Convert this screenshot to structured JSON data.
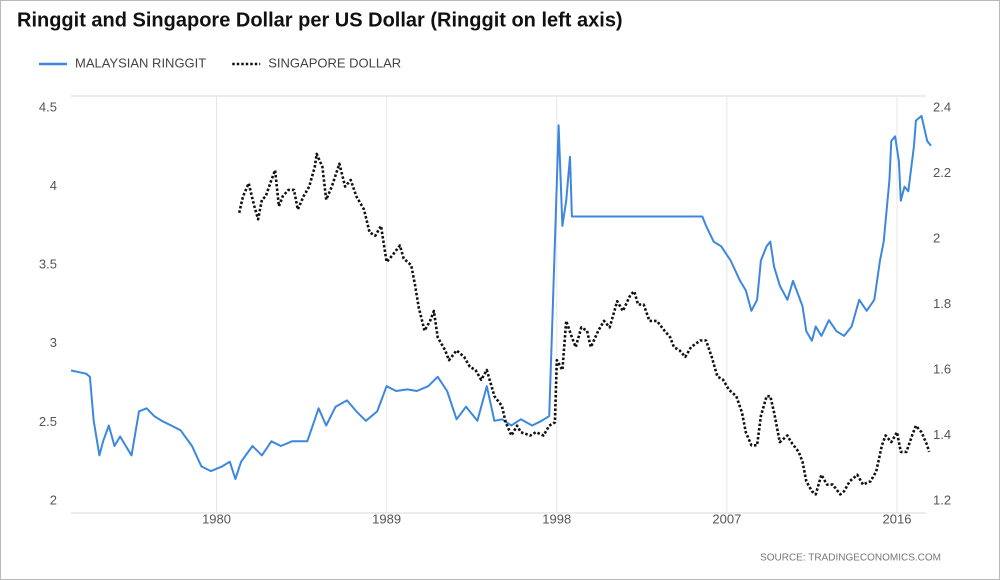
{
  "chart_data": {
    "type": "line",
    "title": "Ringgit and Singapore Dollar per US Dollar (Ringgit on left axis)",
    "source": "SOURCE: TRADINGECONOMICS.COM",
    "xlim": [
      1972.3,
      2017.8
    ],
    "xticks": [
      1980,
      1989,
      1998,
      2007,
      2016
    ],
    "ylim": [
      2,
      4.5
    ],
    "yticks": [
      2,
      2.5,
      3,
      3.5,
      4,
      4.5
    ],
    "y2lim": [
      1.2,
      2.4
    ],
    "y2ticks": [
      1.2,
      1.4,
      1.6,
      1.8,
      2,
      2.2,
      2.4
    ],
    "grid": true,
    "legend": "top",
    "series": [
      {
        "name": "MALAYSIAN RINGGIT",
        "color": "#3d88dc",
        "style": "solid",
        "x": [
          1972.3,
          1973.1,
          1973.3,
          1973.5,
          1973.8,
          1974.0,
          1974.3,
          1974.6,
          1974.9,
          1975.2,
          1975.5,
          1975.9,
          1976.3,
          1976.7,
          1977.1,
          1977.6,
          1978.1,
          1978.7,
          1979.2,
          1979.7,
          1980.3,
          1980.7,
          1981.0,
          1981.3,
          1981.9,
          1982.4,
          1982.9,
          1983.4,
          1984.0,
          1984.8,
          1985.4,
          1985.8,
          1986.3,
          1986.9,
          1987.4,
          1987.9,
          1988.5,
          1989.0,
          1989.5,
          1990.1,
          1990.6,
          1991.2,
          1991.7,
          1992.2,
          1992.7,
          1993.2,
          1993.8,
          1994.3,
          1994.7,
          1995.1,
          1995.6,
          1996.1,
          1996.7,
          1997.2,
          1997.6,
          1997.8,
          1998.0,
          1998.1,
          1998.3,
          1998.5,
          1998.7,
          1998.8,
          1999.3,
          2000.4,
          2003.0,
          2005.7,
          2005.9,
          2006.3,
          2006.7,
          2007.2,
          2007.7,
          2008.0,
          2008.3,
          2008.6,
          2008.8,
          2009.1,
          2009.3,
          2009.5,
          2009.8,
          2010.2,
          2010.5,
          2011.0,
          2011.2,
          2011.5,
          2011.7,
          2012.0,
          2012.4,
          2012.8,
          2013.2,
          2013.6,
          2014.0,
          2014.4,
          2014.8,
          2015.1,
          2015.3,
          2015.6,
          2015.7,
          2015.9,
          2016.1,
          2016.2,
          2016.4,
          2016.6,
          2016.9,
          2017.0,
          2017.3,
          2017.6,
          2017.8
        ],
        "values": [
          2.83,
          2.81,
          2.79,
          2.51,
          2.29,
          2.38,
          2.48,
          2.35,
          2.41,
          2.35,
          2.29,
          2.57,
          2.59,
          2.54,
          2.51,
          2.48,
          2.45,
          2.35,
          2.22,
          2.19,
          2.22,
          2.25,
          2.14,
          2.25,
          2.35,
          2.29,
          2.38,
          2.35,
          2.38,
          2.38,
          2.59,
          2.48,
          2.6,
          2.64,
          2.57,
          2.51,
          2.57,
          2.73,
          2.7,
          2.71,
          2.7,
          2.73,
          2.79,
          2.7,
          2.52,
          2.6,
          2.51,
          2.73,
          2.51,
          2.52,
          2.48,
          2.52,
          2.48,
          2.51,
          2.54,
          3.27,
          4.02,
          4.39,
          3.75,
          3.91,
          4.19,
          3.81,
          3.81,
          3.81,
          3.81,
          3.81,
          3.75,
          3.65,
          3.62,
          3.53,
          3.4,
          3.34,
          3.21,
          3.28,
          3.53,
          3.62,
          3.65,
          3.49,
          3.37,
          3.28,
          3.4,
          3.24,
          3.08,
          3.02,
          3.11,
          3.05,
          3.15,
          3.08,
          3.05,
          3.11,
          3.28,
          3.21,
          3.28,
          3.53,
          3.65,
          4.04,
          4.29,
          4.32,
          4.16,
          3.91,
          4.0,
          3.97,
          4.26,
          4.42,
          4.45,
          4.29,
          4.26
        ]
      },
      {
        "name": "SINGAPORE DOLLAR",
        "color": "#111111",
        "style": "dotted",
        "axis": "y2",
        "x": [
          1981.2,
          1981.4,
          1981.7,
          1982.0,
          1982.2,
          1982.4,
          1982.6,
          1982.9,
          1983.1,
          1983.3,
          1983.5,
          1983.8,
          1984.1,
          1984.3,
          1984.6,
          1984.9,
          1985.2,
          1985.3,
          1985.6,
          1985.8,
          1986.1,
          1986.5,
          1986.8,
          1987.1,
          1987.4,
          1987.8,
          1988.1,
          1988.4,
          1988.7,
          1989.0,
          1989.3,
          1989.7,
          1989.9,
          1990.3,
          1990.5,
          1990.7,
          1991.0,
          1991.3,
          1991.5,
          1991.7,
          1992.1,
          1992.3,
          1992.7,
          1993.1,
          1993.4,
          1993.7,
          1994.0,
          1994.3,
          1994.7,
          1995.1,
          1995.3,
          1995.6,
          1995.9,
          1996.1,
          1996.6,
          1996.9,
          1997.3,
          1997.6,
          1997.9,
          1998.0,
          1998.3,
          1998.5,
          1998.8,
          1999.0,
          1999.3,
          1999.6,
          1999.8,
          2000.2,
          2000.5,
          2000.8,
          2001.2,
          2001.5,
          2001.9,
          2002.1,
          2002.3,
          2002.6,
          2002.9,
          2003.3,
          2003.7,
          2004.0,
          2004.2,
          2004.5,
          2004.8,
          2005.1,
          2005.6,
          2005.9,
          2006.2,
          2006.5,
          2006.8,
          2007.1,
          2007.5,
          2007.8,
          2008.0,
          2008.3,
          2008.6,
          2008.8,
          2009.1,
          2009.3,
          2009.5,
          2009.8,
          2010.2,
          2010.4,
          2010.8,
          2011.0,
          2011.2,
          2011.5,
          2011.7,
          2012.0,
          2012.3,
          2012.6,
          2013.0,
          2013.2,
          2013.5,
          2013.9,
          2014.2,
          2014.6,
          2014.9,
          2015.2,
          2015.4,
          2015.7,
          2016.0,
          2016.2,
          2016.5,
          2016.8,
          2017.0,
          2017.3,
          2017.6,
          2017.7
        ],
        "values": [
          2.08,
          2.13,
          2.17,
          2.1,
          2.06,
          2.12,
          2.13,
          2.18,
          2.21,
          2.1,
          2.13,
          2.15,
          2.15,
          2.09,
          2.13,
          2.16,
          2.22,
          2.26,
          2.22,
          2.12,
          2.16,
          2.23,
          2.16,
          2.18,
          2.13,
          2.09,
          2.02,
          2.01,
          2.04,
          1.93,
          1.95,
          1.98,
          1.94,
          1.92,
          1.86,
          1.79,
          1.72,
          1.75,
          1.78,
          1.7,
          1.66,
          1.63,
          1.66,
          1.64,
          1.61,
          1.6,
          1.57,
          1.6,
          1.52,
          1.49,
          1.44,
          1.4,
          1.43,
          1.41,
          1.4,
          1.41,
          1.4,
          1.43,
          1.44,
          1.63,
          1.6,
          1.75,
          1.7,
          1.67,
          1.73,
          1.72,
          1.67,
          1.72,
          1.75,
          1.73,
          1.81,
          1.78,
          1.83,
          1.84,
          1.8,
          1.8,
          1.75,
          1.75,
          1.72,
          1.7,
          1.67,
          1.66,
          1.64,
          1.67,
          1.69,
          1.69,
          1.64,
          1.58,
          1.57,
          1.54,
          1.52,
          1.47,
          1.41,
          1.37,
          1.37,
          1.46,
          1.52,
          1.52,
          1.47,
          1.38,
          1.4,
          1.38,
          1.35,
          1.32,
          1.26,
          1.23,
          1.22,
          1.28,
          1.25,
          1.25,
          1.22,
          1.23,
          1.26,
          1.28,
          1.25,
          1.26,
          1.29,
          1.37,
          1.4,
          1.38,
          1.41,
          1.35,
          1.35,
          1.4,
          1.43,
          1.41,
          1.37,
          1.35
        ]
      }
    ]
  }
}
